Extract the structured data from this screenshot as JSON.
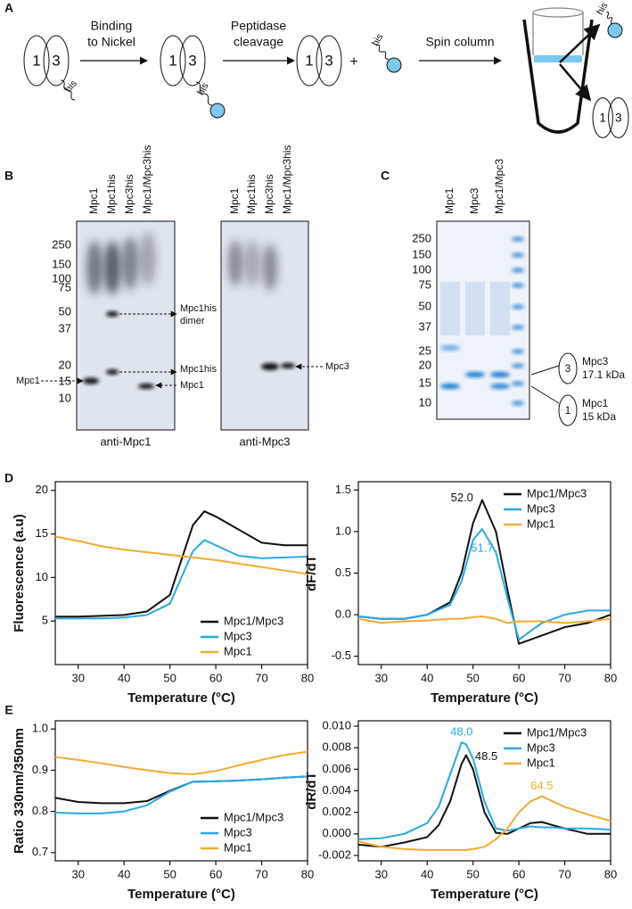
{
  "panels": {
    "a": {
      "letter": "A",
      "subunits": [
        "1",
        "3"
      ],
      "tag": "his",
      "plus": "+",
      "steps": [
        "Binding",
        "to Nickel",
        "Peptidase",
        "cleavage",
        "Spin column"
      ]
    },
    "b": {
      "letter": "B",
      "blots": [
        {
          "lanes": [
            "Mpc1",
            "Mpc1his",
            "Mpc3his",
            "Mpc1/Mpc3his"
          ],
          "antibody": "anti-Mpc1"
        },
        {
          "lanes": [
            "Mpc1",
            "Mpc1his",
            "Mpc3his",
            "Mpc1/Mpc3his"
          ],
          "antibody": "anti-Mpc3"
        }
      ],
      "markers": [
        "250",
        "150",
        "100",
        "75",
        "50",
        "37",
        "20",
        "15",
        "10"
      ],
      "annotations": [
        "Mpc1his",
        "dimer",
        "Mpc1his",
        "Mpc1",
        "Mpc1",
        "Mpc3"
      ]
    },
    "c": {
      "letter": "C",
      "lanes": [
        "Mpc1",
        "Mpc3",
        "Mpc1/Mpc3"
      ],
      "markers": [
        "250",
        "150",
        "100",
        "75",
        "50",
        "37",
        "25",
        "20",
        "15",
        "10"
      ],
      "mpc3": [
        "3",
        "Mpc3",
        "17.1 kDa"
      ],
      "mpc1": [
        "1",
        "Mpc1",
        "15 kDa"
      ]
    },
    "d": {
      "letter": "D"
    },
    "e": {
      "letter": "E"
    }
  },
  "chart_data": [
    {
      "type": "line",
      "xlabel": "Temperature (°C)",
      "ylabel": "Fluorescence (a.u)",
      "x": [
        25,
        30,
        35,
        40,
        45,
        50,
        52.5,
        55,
        57.5,
        60,
        65,
        70,
        75,
        80
      ],
      "xlim": [
        25,
        80
      ],
      "xticks": [
        30,
        40,
        50,
        60,
        70,
        80
      ],
      "ylim": [
        0,
        21
      ],
      "yticks": [
        5,
        10,
        15,
        20
      ],
      "legend": "lower right",
      "series": [
        {
          "name": "Mpc1/Mpc3",
          "color": "#111111",
          "values": [
            5.5,
            5.5,
            5.6,
            5.7,
            6.1,
            8,
            12,
            16,
            17.6,
            17,
            15.5,
            14,
            13.7,
            13.7
          ]
        },
        {
          "name": "Mpc3",
          "color": "#2aa9e0",
          "values": [
            5.3,
            5.3,
            5.3,
            5.4,
            5.7,
            7,
            10,
            13,
            14.3,
            13.7,
            12.5,
            12.2,
            12.3,
            12.4
          ]
        },
        {
          "name": "Mpc1",
          "color": "#f2ab32",
          "values": [
            14.7,
            14.2,
            13.6,
            13.2,
            12.9,
            12.6,
            12.45,
            12.3,
            12.15,
            12,
            11.6,
            11.2,
            10.8,
            10.4
          ]
        }
      ],
      "annotations": []
    },
    {
      "type": "line",
      "xlabel": "Temperature (°C)",
      "ylabel": "dF/dT",
      "x": [
        25,
        30,
        35,
        40,
        45,
        47.5,
        50,
        52,
        55,
        57.5,
        60,
        62.5,
        65,
        70,
        75,
        80
      ],
      "xlim": [
        25,
        80
      ],
      "xticks": [
        30,
        40,
        50,
        60,
        70,
        80
      ],
      "ylim": [
        -0.6,
        1.6
      ],
      "yticks": [
        -0.5,
        {
          "value": 0,
          "label": "0.0"
        },
        0.5,
        {
          "value": 1,
          "label": "1.0"
        },
        1.5
      ],
      "legend": "upper right",
      "series": [
        {
          "name": "Mpc1/Mpc3",
          "color": "#111111",
          "values": [
            -0.02,
            -0.05,
            -0.05,
            0,
            0.15,
            0.5,
            1.1,
            1.38,
            1.0,
            0.3,
            -0.35,
            -0.3,
            -0.25,
            -0.15,
            -0.1,
            0
          ]
        },
        {
          "name": "Mpc3",
          "color": "#2aa9e0",
          "values": [
            -0.02,
            -0.05,
            -0.05,
            0,
            0.12,
            0.4,
            0.9,
            1.03,
            0.75,
            0.2,
            -0.3,
            -0.2,
            -0.1,
            0,
            0.05,
            0.05
          ]
        },
        {
          "name": "Mpc1",
          "color": "#f2ab32",
          "values": [
            -0.05,
            -0.1,
            -0.08,
            -0.07,
            -0.05,
            -0.05,
            -0.03,
            -0.02,
            -0.05,
            -0.1,
            -0.08,
            -0.08,
            -0.08,
            -0.1,
            -0.08,
            -0.05
          ]
        }
      ],
      "annotations": [
        {
          "text": "52.0",
          "color": "#111111"
        },
        {
          "text": "51.7",
          "color": "#2aa9e0"
        }
      ]
    },
    {
      "type": "line",
      "xlabel": "Temperature (°C)",
      "ylabel": "Ratio 330nm/350nm",
      "x": [
        25,
        30,
        35,
        40,
        45,
        50,
        55,
        60,
        65,
        70,
        75,
        80
      ],
      "xlim": [
        25,
        80
      ],
      "xticks": [
        30,
        40,
        50,
        60,
        70,
        80
      ],
      "ylim": [
        0.68,
        1.02
      ],
      "yticks": [
        0.7,
        0.8,
        0.9,
        {
          "value": 1,
          "label": "1.0"
        }
      ],
      "legend": "lower right",
      "series": [
        {
          "name": "Mpc1/Mpc3",
          "color": "#111111",
          "values": [
            0.833,
            0.823,
            0.82,
            0.82,
            0.825,
            0.85,
            0.872,
            0.873,
            0.875,
            0.878,
            0.882,
            0.885
          ]
        },
        {
          "name": "Mpc3",
          "color": "#2aa9e0",
          "values": [
            0.797,
            0.795,
            0.795,
            0.8,
            0.815,
            0.848,
            0.872,
            0.873,
            0.875,
            0.878,
            0.882,
            0.885
          ]
        },
        {
          "name": "Mpc1",
          "color": "#f2ab32",
          "values": [
            0.932,
            0.925,
            0.917,
            0.908,
            0.9,
            0.893,
            0.89,
            0.898,
            0.912,
            0.925,
            0.937,
            0.945
          ]
        }
      ],
      "annotations": []
    },
    {
      "type": "line",
      "xlabel": "Temperature (°C)",
      "ylabel": "dR/dT",
      "x": [
        25,
        30,
        35,
        40,
        42.5,
        45,
        47.5,
        48.5,
        50,
        52.5,
        55,
        57.5,
        60,
        62.5,
        65,
        67.5,
        70,
        75,
        80
      ],
      "xlim": [
        25,
        80
      ],
      "xticks": [
        30,
        40,
        50,
        60,
        70,
        80
      ],
      "ylim": [
        -0.0025,
        0.0105
      ],
      "yticks": [
        {
          "value": -0.002,
          "label": "-0.002"
        },
        {
          "value": 0,
          "label": "0.000"
        },
        {
          "value": 0.002,
          "label": "0.002"
        },
        {
          "value": 0.004,
          "label": "0.004"
        },
        {
          "value": 0.006,
          "label": "0.006"
        },
        {
          "value": 0.008,
          "label": "0.008"
        },
        {
          "value": 0.01,
          "label": "0.010"
        }
      ],
      "legend": "upper right",
      "series": [
        {
          "name": "Mpc1/Mpc3",
          "color": "#111111",
          "values": [
            -0.001,
            -0.0012,
            -0.0008,
            -0.0003,
            0.0008,
            0.003,
            0.0065,
            0.0073,
            0.006,
            0.002,
            0.0001,
            0,
            0.0005,
            0.001,
            0.0011,
            0.0008,
            0.0005,
            0,
            0
          ]
        },
        {
          "name": "Mpc3",
          "color": "#2aa9e0",
          "values": [
            -0.0005,
            -0.0004,
            0,
            0.001,
            0.0025,
            0.0055,
            0.0085,
            0.0083,
            0.007,
            0.003,
            0.0005,
            0.0003,
            0.0005,
            0.0007,
            0.0006,
            0.0006,
            0.0005,
            0.0005,
            0.0004
          ]
        },
        {
          "name": "Mpc1",
          "color": "#f2ab32",
          "values": [
            -0.0007,
            -0.0012,
            -0.0014,
            -0.0015,
            -0.0015,
            -0.0015,
            -0.0015,
            -0.0015,
            -0.0014,
            -0.0012,
            -0.0005,
            0.0005,
            0.002,
            0.003,
            0.0035,
            0.003,
            0.0025,
            0.0018,
            0.0012
          ]
        }
      ],
      "annotations": [
        {
          "text": "48.0",
          "color": "#2aa9e0"
        },
        {
          "text": "48.5",
          "color": "#111111"
        },
        {
          "text": "64.5",
          "color": "#f2ab32"
        }
      ]
    }
  ]
}
